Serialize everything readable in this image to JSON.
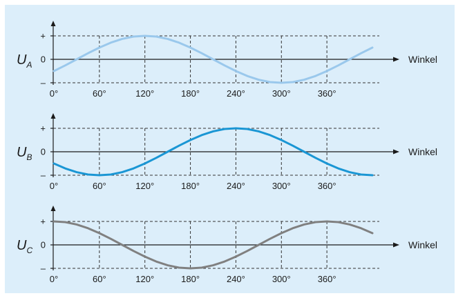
{
  "chart_data": [
    {
      "type": "line",
      "ylabel_main": "U",
      "ylabel_sub": "A",
      "xlabel": "Winkel",
      "y_tick_labels": {
        "plus": "+",
        "zero": "0",
        "minus": "–"
      },
      "x_ticks": [
        0,
        60,
        120,
        180,
        240,
        300,
        360
      ],
      "x_tick_labels": [
        "0°",
        "60°",
        "120°",
        "180°",
        "240°",
        "300°",
        "360°"
      ],
      "xlim": [
        0,
        420
      ],
      "ylim": [
        -1,
        1
      ],
      "series": [
        {
          "color": "#9ac8ec",
          "x": [
            0,
            15,
            30,
            45,
            60,
            75,
            90,
            105,
            120,
            135,
            150,
            165,
            180,
            195,
            210,
            225,
            240,
            255,
            270,
            285,
            300,
            315,
            330,
            345,
            360,
            375,
            390,
            405,
            420
          ],
          "y": [
            -0.5,
            -0.26,
            0,
            0.26,
            0.5,
            0.71,
            0.87,
            0.97,
            1,
            0.97,
            0.87,
            0.71,
            0.5,
            0.26,
            0,
            -0.26,
            -0.5,
            -0.71,
            -0.87,
            -0.97,
            -1,
            -0.97,
            -0.87,
            -0.71,
            -0.5,
            -0.26,
            0,
            0.26,
            0.5
          ]
        }
      ]
    },
    {
      "type": "line",
      "ylabel_main": "U",
      "ylabel_sub": "B",
      "xlabel": "Winkel",
      "y_tick_labels": {
        "plus": "+",
        "zero": "0",
        "minus": "–"
      },
      "x_ticks": [
        0,
        60,
        120,
        180,
        240,
        300,
        360
      ],
      "x_tick_labels": [
        "0°",
        "60°",
        "120°",
        "180°",
        "240°",
        "300°",
        "360°"
      ],
      "xlim": [
        0,
        420
      ],
      "ylim": [
        -1,
        1
      ],
      "series": [
        {
          "color": "#1a96d4",
          "x": [
            0,
            15,
            30,
            45,
            60,
            75,
            90,
            105,
            120,
            135,
            150,
            165,
            180,
            195,
            210,
            225,
            240,
            255,
            270,
            285,
            300,
            315,
            330,
            345,
            360,
            375,
            390,
            405,
            420
          ],
          "y": [
            -0.5,
            -0.71,
            -0.87,
            -0.97,
            -1,
            -0.97,
            -0.87,
            -0.71,
            -0.5,
            -0.26,
            0,
            0.26,
            0.5,
            0.71,
            0.87,
            0.97,
            1,
            0.97,
            0.87,
            0.71,
            0.5,
            0.26,
            0,
            -0.26,
            -0.5,
            -0.71,
            -0.87,
            -0.97,
            -1
          ]
        }
      ]
    },
    {
      "type": "line",
      "ylabel_main": "U",
      "ylabel_sub": "C",
      "xlabel": "Winkel",
      "y_tick_labels": {
        "plus": "+",
        "zero": "0",
        "minus": "–"
      },
      "x_ticks": [
        0,
        60,
        120,
        180,
        240,
        300,
        360
      ],
      "x_tick_labels": [
        "0°",
        "60°",
        "120°",
        "180°",
        "240°",
        "300°",
        "360°"
      ],
      "xlim": [
        0,
        420
      ],
      "ylim": [
        -1,
        1
      ],
      "series": [
        {
          "color": "#808080",
          "x": [
            0,
            15,
            30,
            45,
            60,
            75,
            90,
            105,
            120,
            135,
            150,
            165,
            180,
            195,
            210,
            225,
            240,
            255,
            270,
            285,
            300,
            315,
            330,
            345,
            360,
            375,
            390,
            405,
            420
          ],
          "y": [
            1,
            0.97,
            0.87,
            0.71,
            0.5,
            0.26,
            0,
            -0.26,
            -0.5,
            -0.71,
            -0.87,
            -0.97,
            -1,
            -0.97,
            -0.87,
            -0.71,
            -0.5,
            -0.26,
            0,
            0.26,
            0.5,
            0.71,
            0.87,
            0.97,
            1,
            0.97,
            0.87,
            0.71,
            0.5
          ]
        }
      ]
    }
  ],
  "colors": {
    "background": "#dceefa",
    "axis": "#1a1a1a",
    "grid": "#333333"
  }
}
